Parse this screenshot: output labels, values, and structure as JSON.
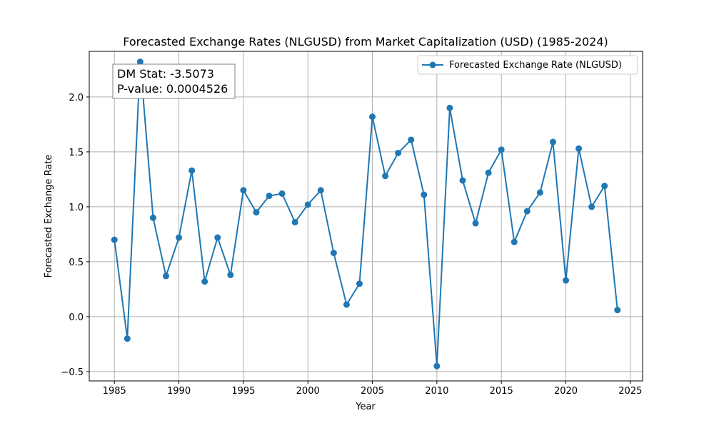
{
  "chart_data": {
    "type": "line",
    "title": "Forecasted Exchange Rates (NLGUSD) from Market Capitalization (USD) (1985-2024)",
    "xlabel": "Year",
    "ylabel": "Forecasted Exchange Rate",
    "xlim": [
      1983.05,
      2025.95
    ],
    "ylim": [
      -0.585,
      2.415
    ],
    "xticks": [
      1985,
      1990,
      1995,
      2000,
      2005,
      2010,
      2015,
      2020,
      2025
    ],
    "yticks": [
      -0.5,
      0.0,
      0.5,
      1.0,
      1.5,
      2.0
    ],
    "ytick_labels": [
      "−0.5",
      "0.0",
      "0.5",
      "1.0",
      "1.5",
      "2.0"
    ],
    "grid": true,
    "legend_position": "top-right",
    "series": [
      {
        "name": "Forecasted Exchange Rate (NLGUSD)",
        "color": "#1f77b4",
        "marker": "circle",
        "x": [
          1985,
          1986,
          1987,
          1988,
          1989,
          1990,
          1991,
          1992,
          1993,
          1994,
          1995,
          1996,
          1997,
          1998,
          1999,
          2000,
          2001,
          2002,
          2003,
          2004,
          2005,
          2006,
          2007,
          2008,
          2009,
          2010,
          2011,
          2012,
          2013,
          2014,
          2015,
          2016,
          2017,
          2018,
          2019,
          2020,
          2021,
          2022,
          2023,
          2024
        ],
        "y": [
          0.7,
          -0.2,
          2.32,
          0.9,
          0.37,
          0.72,
          1.33,
          0.32,
          0.72,
          0.38,
          1.15,
          0.95,
          1.1,
          1.12,
          0.86,
          1.02,
          1.15,
          0.58,
          0.11,
          0.3,
          1.82,
          1.28,
          1.49,
          1.61,
          1.11,
          -0.45,
          1.9,
          1.24,
          0.85,
          1.31,
          1.52,
          0.68,
          0.96,
          1.13,
          1.59,
          0.33,
          1.53,
          1.0,
          1.19,
          0.06
        ]
      }
    ],
    "annotation": {
      "line1": "DM Stat: -3.5073",
      "line2": "P-value: 0.0004526"
    }
  }
}
